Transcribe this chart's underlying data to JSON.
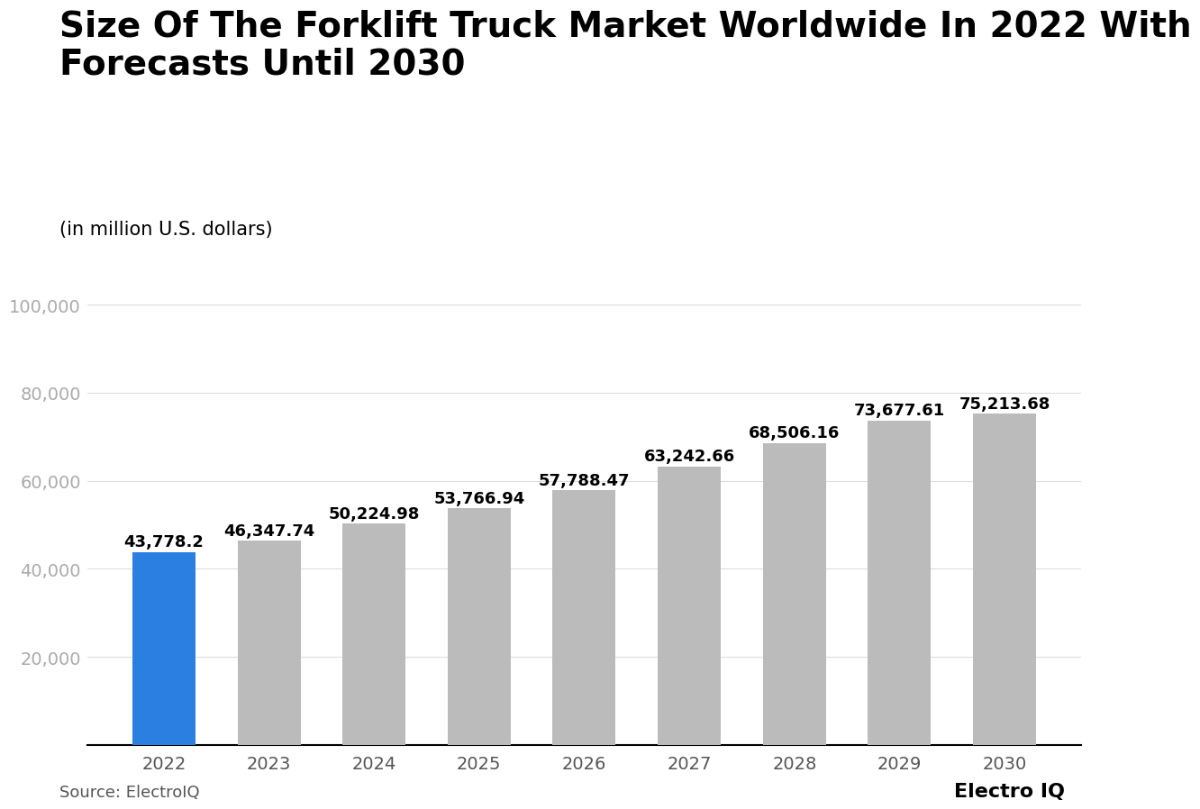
{
  "title": "Size Of The Forklift Truck Market Worldwide In 2022 With\nForecasts Until 2030",
  "subtitle": "(in million U.S. dollars)",
  "source": "Source: ElectroIQ",
  "brand": "Electro IQ",
  "years": [
    "2022",
    "2023",
    "2024",
    "2025",
    "2026",
    "2027",
    "2028",
    "2029",
    "2030"
  ],
  "values": [
    43778.2,
    46347.74,
    50224.98,
    53766.94,
    57788.47,
    63242.66,
    68506.16,
    73677.61,
    75213.68
  ],
  "labels": [
    "43,778.2",
    "46,347.74",
    "50,224.98",
    "53,766.94",
    "57,788.47",
    "63,242.66",
    "68,506.16",
    "73,677.61",
    "75,213.68"
  ],
  "bar_colors": [
    "#2B7FE0",
    "#BBBBBB",
    "#BBBBBB",
    "#BBBBBB",
    "#BBBBBB",
    "#BBBBBB",
    "#BBBBBB",
    "#BBBBBB",
    "#BBBBBB"
  ],
  "ylim": [
    0,
    100000
  ],
  "yticks": [
    0,
    20000,
    40000,
    60000,
    80000,
    100000
  ],
  "ytick_labels": [
    "",
    "20,000",
    "40,000",
    "60,000",
    "80,000",
    "100,000"
  ],
  "background_color": "#FFFFFF",
  "title_fontsize": 28,
  "subtitle_fontsize": 15,
  "label_fontsize": 13,
  "tick_fontsize": 14,
  "source_fontsize": 13,
  "brand_fontsize": 16
}
